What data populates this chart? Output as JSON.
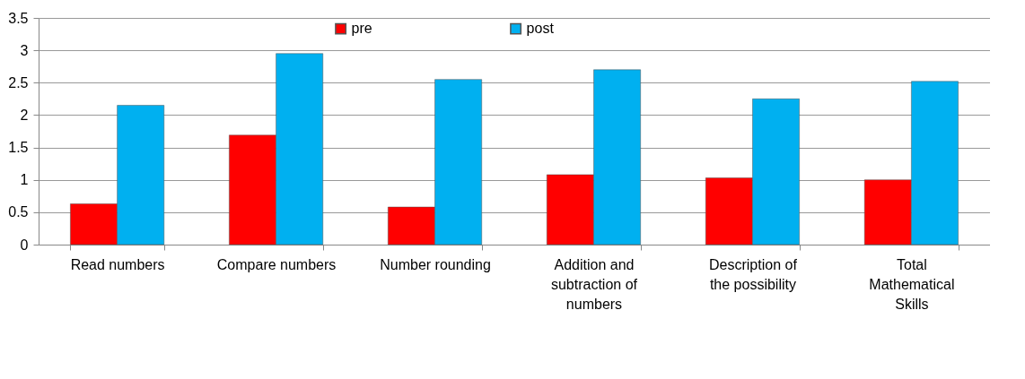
{
  "chart_data": {
    "type": "bar",
    "categories": [
      "Read numbers",
      "Compare numbers",
      "Number rounding",
      "Addition and subtraction of numbers",
      "Description of the possibility",
      "Total Mathematical Skills"
    ],
    "series": [
      {
        "name": "pre",
        "color": "#ff0000",
        "values": [
          0.63,
          1.69,
          0.58,
          1.08,
          1.03,
          1.0
        ]
      },
      {
        "name": "post",
        "color": "#00b0f0",
        "values": [
          2.15,
          2.95,
          2.55,
          2.7,
          2.25,
          2.52
        ]
      }
    ],
    "ylim": [
      0,
      3.5
    ],
    "yticks": [
      0,
      0.5,
      1,
      1.5,
      2,
      2.5,
      3,
      3.5
    ],
    "grid": "y",
    "legend": "top"
  }
}
